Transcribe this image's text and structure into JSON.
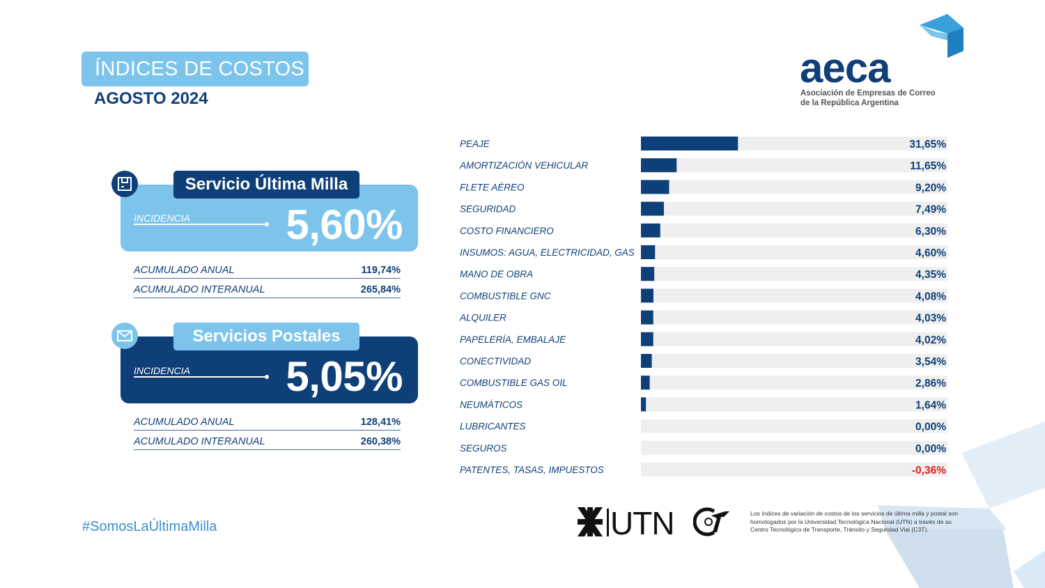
{
  "header": {
    "title": "ÍNDICES DE COSTOS",
    "period": "AGOSTO 2024"
  },
  "logo": {
    "word": "aeca",
    "line1": "Asociación de Empresas de Correo",
    "line2": "de la República Argentina"
  },
  "cards": [
    {
      "name": "Servicio Última Milla",
      "icon": "box-icon",
      "incidence_label": "INCIDENCIA",
      "incidence": "5,60%",
      "rows": [
        {
          "label": "ACUMULADO ANUAL",
          "value": "119,74%"
        },
        {
          "label": "ACUMULADO INTERANUAL",
          "value": "265,84%"
        }
      ]
    },
    {
      "name": "Servicios Postales",
      "icon": "envelope-icon",
      "incidence_label": "INCIDENCIA",
      "incidence": "5,05%",
      "rows": [
        {
          "label": "ACUMULADO ANUAL",
          "value": "128,41%"
        },
        {
          "label": "ACUMULADO INTERANUAL",
          "value": "260,38%"
        }
      ]
    }
  ],
  "hashtag": "#SomosLaÚltimaMilla",
  "footer": {
    "utn": "UTN",
    "note": "Los índices de variación de costos de los servicios de última milla y postal son homologados por la Universidad Tecnológica Nacional (UTN) a través de su Centro Tecnológico de Transporte, Tránsito y Seguridad Vial (C3T)."
  },
  "colors": {
    "dark_blue": "#0f3f78",
    "light_blue": "#7cc4ec",
    "track": "#efefef",
    "negative": "#e0201b"
  },
  "chart_data": {
    "type": "bar",
    "orientation": "horizontal",
    "categories": [
      "PEAJE",
      "AMORTIZACIÓN VEHICULAR",
      "FLETE AÉREO",
      "SEGURIDAD",
      "COSTO FINANCIERO",
      "INSUMOS: AGUA, ELECTRICIDAD, GAS",
      "MANO DE OBRA",
      "COMBUSTIBLE GNC",
      "ALQUILER",
      "PAPELERÍA, EMBALAJE",
      "CONECTIVIDAD",
      "COMBUSTIBLE GAS OIL",
      "NEUMÁTICOS",
      "LUBRICANTES",
      "SEGUROS",
      "PATENTES, TASAS, IMPUESTOS"
    ],
    "values": [
      31.65,
      11.65,
      9.2,
      7.49,
      6.3,
      4.6,
      4.35,
      4.08,
      4.03,
      4.02,
      3.54,
      2.86,
      1.64,
      0.0,
      0.0,
      -0.36
    ],
    "value_labels": [
      "31,65%",
      "11,65%",
      "9,20%",
      "7,49%",
      "6,30%",
      "4,60%",
      "4,35%",
      "4,08%",
      "4,03%",
      "4,02%",
      "3,54%",
      "2,86%",
      "1,64%",
      "0,00%",
      "0,00%",
      "-0,36%"
    ],
    "xlim": [
      0,
      100
    ],
    "grid": false,
    "legend": "none"
  }
}
